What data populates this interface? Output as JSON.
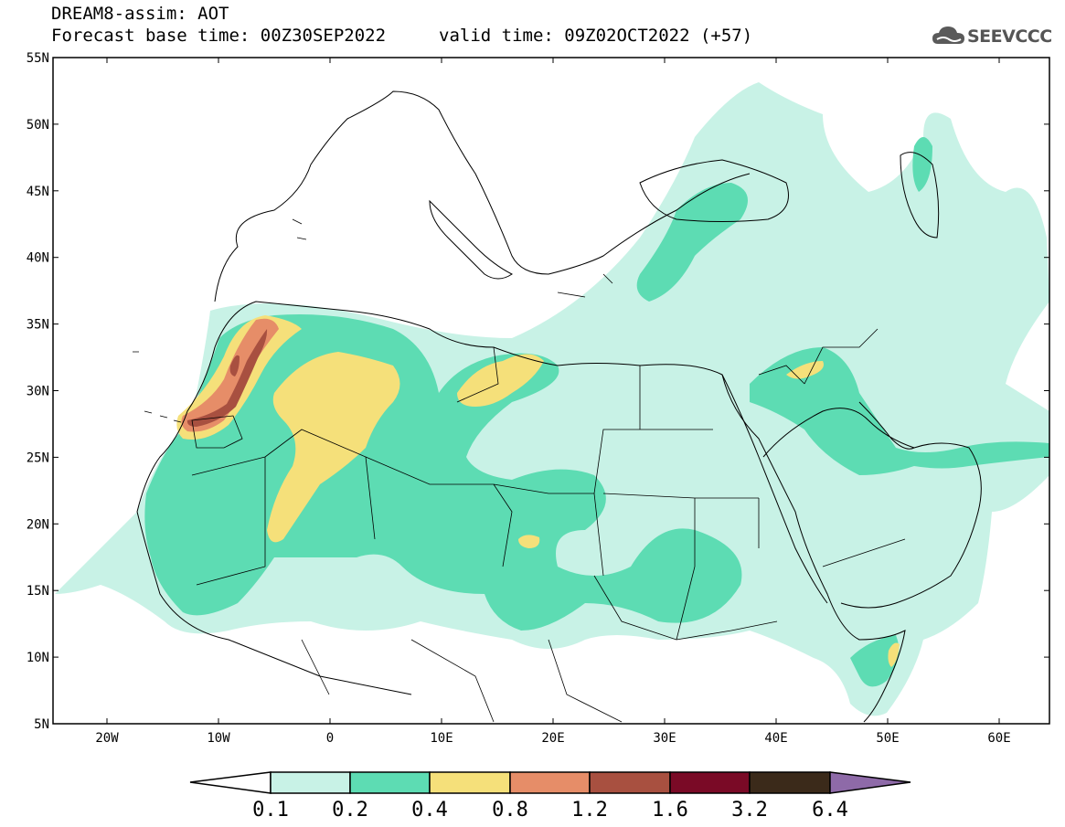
{
  "header": {
    "model_line": "DREAM8-assim: AOT",
    "base_time": "Forecast base time: 00Z30SEP2022",
    "valid_time": "valid time: 09Z02OCT2022 (+57)"
  },
  "logo": {
    "text": "SEEVCCC",
    "icon": "cloud-icon"
  },
  "map": {
    "lat_labels": [
      "55N",
      "50N",
      "45N",
      "40N",
      "35N",
      "30N",
      "25N",
      "20N",
      "15N",
      "10N",
      "5N"
    ],
    "lon_labels": [
      "20W",
      "10W",
      "0",
      "10E",
      "20E",
      "30E",
      "40E",
      "50E",
      "60E"
    ]
  },
  "colorbar": {
    "labels": [
      "0.1",
      "0.2",
      "0.4",
      "0.8",
      "1.2",
      "1.6",
      "3.2",
      "6.4"
    ],
    "colors": [
      "#ffffff",
      "#c8f2e6",
      "#5ddcb3",
      "#f5e07a",
      "#e68d68",
      "#a85040",
      "#7a0a26",
      "#3b2a1a",
      "#8e6aa8"
    ]
  },
  "colors": {
    "aot_0_1": "#c8f2e6",
    "aot_0_2": "#5ddcb3",
    "aot_0_4": "#f5e07a",
    "aot_0_8": "#e68d68",
    "aot_1_2": "#a85040"
  }
}
